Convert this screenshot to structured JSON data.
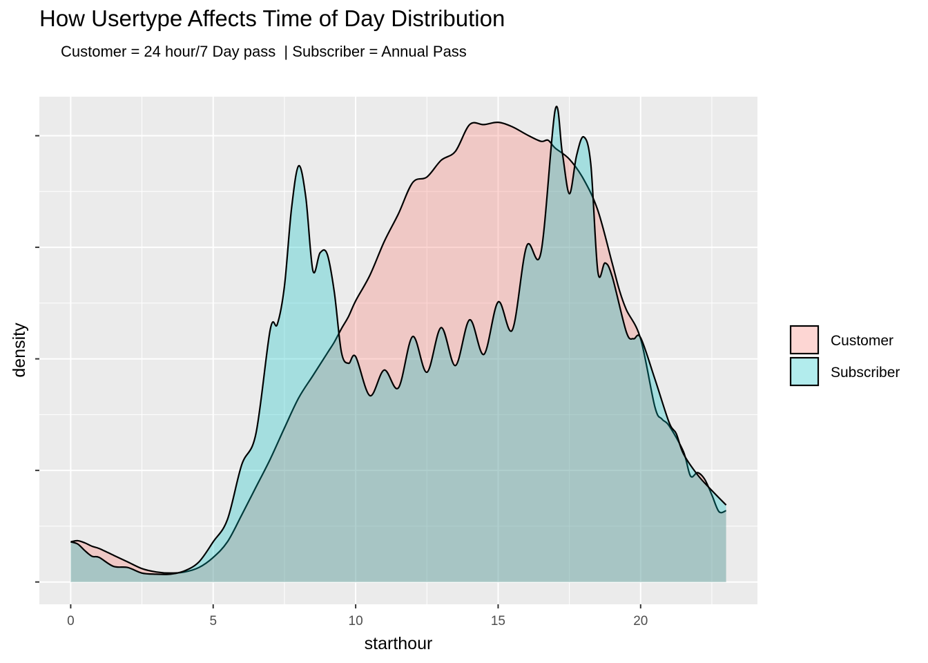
{
  "chart_data": {
    "type": "area",
    "title": "How Usertype Affects Time of Day Distribution",
    "subtitle": "Customer = 24 hour/7 Day pass  | Subscriber = Annual Pass",
    "xlabel": "starthour",
    "ylabel": "density",
    "xlim": [
      -1.1,
      24.1
    ],
    "ylim": [
      -0.002,
      0.0435
    ],
    "x_ticks": [
      0,
      5,
      10,
      15,
      20
    ],
    "y_ticks": [
      0,
      0.01,
      0.02,
      0.03,
      0.04
    ],
    "y_tick_labels_shown": false,
    "grid": true,
    "legend_position": "right",
    "series": [
      {
        "name": "Customer",
        "color": "#F8766D",
        "points": [
          [
            0,
            0.0036
          ],
          [
            0.25,
            0.0037
          ],
          [
            0.5,
            0.0035
          ],
          [
            0.75,
            0.0032
          ],
          [
            1,
            0.003
          ],
          [
            1.5,
            0.0024
          ],
          [
            2,
            0.0018
          ],
          [
            2.5,
            0.0012
          ],
          [
            3,
            0.0009
          ],
          [
            3.5,
            0.0008
          ],
          [
            4,
            0.0009
          ],
          [
            4.5,
            0.0013
          ],
          [
            5,
            0.0022
          ],
          [
            5.5,
            0.0036
          ],
          [
            6,
            0.006
          ],
          [
            6.5,
            0.0085
          ],
          [
            7,
            0.011
          ],
          [
            7.5,
            0.0138
          ],
          [
            8,
            0.0165
          ],
          [
            8.5,
            0.0185
          ],
          [
            9,
            0.0205
          ],
          [
            9.25,
            0.0215
          ],
          [
            9.5,
            0.0227
          ],
          [
            9.75,
            0.0238
          ],
          [
            10,
            0.0252
          ],
          [
            10.5,
            0.0275
          ],
          [
            11,
            0.0305
          ],
          [
            11.5,
            0.033
          ],
          [
            12,
            0.0358
          ],
          [
            12.5,
            0.0363
          ],
          [
            13,
            0.0378
          ],
          [
            13.5,
            0.0386
          ],
          [
            14,
            0.041
          ],
          [
            14.5,
            0.041
          ],
          [
            15,
            0.0412
          ],
          [
            15.5,
            0.0408
          ],
          [
            16,
            0.0401
          ],
          [
            16.5,
            0.0395
          ],
          [
            16.75,
            0.0396
          ],
          [
            17,
            0.0389
          ],
          [
            17.5,
            0.0379
          ],
          [
            18,
            0.0361
          ],
          [
            18.5,
            0.0333
          ],
          [
            19,
            0.0286
          ],
          [
            19.25,
            0.0262
          ],
          [
            19.5,
            0.0244
          ],
          [
            20,
            0.0218
          ],
          [
            20.5,
            0.0157
          ],
          [
            20.75,
            0.0146
          ],
          [
            21,
            0.014
          ],
          [
            21.5,
            0.0117
          ],
          [
            21.75,
            0.0095
          ],
          [
            22,
            0.0098
          ],
          [
            22.25,
            0.0092
          ],
          [
            22.5,
            0.0078
          ],
          [
            22.75,
            0.0063
          ],
          [
            23,
            0.0064
          ]
        ]
      },
      {
        "name": "Subscriber",
        "color": "#00BFC4",
        "points": [
          [
            0,
            0.0036
          ],
          [
            0.25,
            0.0034
          ],
          [
            0.5,
            0.0028
          ],
          [
            0.75,
            0.0023
          ],
          [
            1,
            0.0022
          ],
          [
            1.5,
            0.0014
          ],
          [
            2,
            0.0013
          ],
          [
            2.5,
            0.0008
          ],
          [
            3,
            0.0007
          ],
          [
            3.5,
            0.0007
          ],
          [
            4,
            0.001
          ],
          [
            4.5,
            0.0018
          ],
          [
            5,
            0.0036
          ],
          [
            5.5,
            0.0056
          ],
          [
            6,
            0.0105
          ],
          [
            6.5,
            0.0133
          ],
          [
            7,
            0.0226
          ],
          [
            7.25,
            0.0231
          ],
          [
            7.5,
            0.0265
          ],
          [
            7.75,
            0.0335
          ],
          [
            8,
            0.0373
          ],
          [
            8.25,
            0.0345
          ],
          [
            8.5,
            0.0279
          ],
          [
            8.75,
            0.0295
          ],
          [
            9,
            0.0294
          ],
          [
            9.25,
            0.026
          ],
          [
            9.5,
            0.0206
          ],
          [
            9.75,
            0.0196
          ],
          [
            10,
            0.0202
          ],
          [
            10.5,
            0.0167
          ],
          [
            11,
            0.019
          ],
          [
            11.5,
            0.0174
          ],
          [
            12,
            0.022
          ],
          [
            12.5,
            0.0188
          ],
          [
            13,
            0.0228
          ],
          [
            13.5,
            0.0194
          ],
          [
            14,
            0.0235
          ],
          [
            14.5,
            0.0204
          ],
          [
            15,
            0.0251
          ],
          [
            15.5,
            0.0226
          ],
          [
            16,
            0.0301
          ],
          [
            16.5,
            0.0295
          ],
          [
            17,
            0.0423
          ],
          [
            17.25,
            0.0385
          ],
          [
            17.5,
            0.0348
          ],
          [
            17.75,
            0.0382
          ],
          [
            18,
            0.0399
          ],
          [
            18.25,
            0.0375
          ],
          [
            18.5,
            0.0278
          ],
          [
            18.75,
            0.0286
          ],
          [
            19,
            0.0274
          ],
          [
            19.5,
            0.0224
          ],
          [
            19.75,
            0.0218
          ],
          [
            20,
            0.0219
          ],
          [
            20.5,
            0.0182
          ],
          [
            21,
            0.0143
          ],
          [
            21.25,
            0.0133
          ],
          [
            21.5,
            0.0115
          ],
          [
            22,
            0.0096
          ],
          [
            22.5,
            0.0082
          ],
          [
            23,
            0.0069
          ]
        ]
      }
    ],
    "fill_alpha": 0.3,
    "panel_background": "#EBEBEB",
    "grid_color": "#FFFFFF"
  }
}
